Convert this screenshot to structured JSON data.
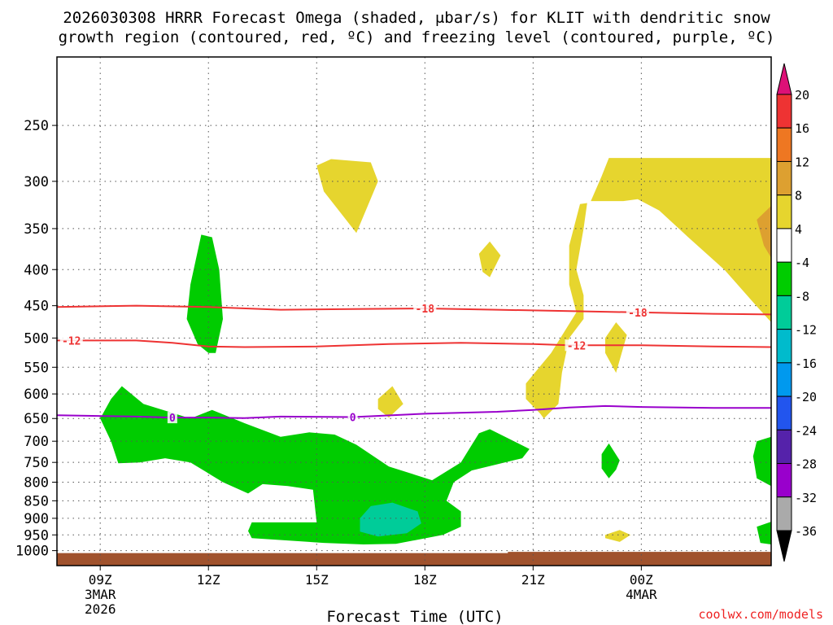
{
  "chart_data": {
    "type": "contour",
    "title_line1": "2026030308 HRRR Forecast Omega (shaded, μbar/s) for KLIT with dendritic snow",
    "title_line2": "growth region (contoured, red, ºC) and freezing level (contoured, purple, ºC)",
    "xlabel": "Forecast Time (UTC)",
    "credit": "coolwx.com/models",
    "x_range_hours": [
      7.8,
      27.6
    ],
    "y_axis": {
      "type": "log",
      "unit": "hPa",
      "range": [
        200,
        1050
      ],
      "reversed": true,
      "ticks": [
        250,
        300,
        350,
        400,
        450,
        500,
        550,
        600,
        650,
        700,
        750,
        800,
        850,
        900,
        950,
        1000
      ]
    },
    "x_ticks": [
      {
        "hour": 9,
        "label": "09Z",
        "sub1": "3MAR",
        "sub2": "2026"
      },
      {
        "hour": 12,
        "label": "12Z",
        "sub1": "",
        "sub2": ""
      },
      {
        "hour": 15,
        "label": "15Z",
        "sub1": "",
        "sub2": ""
      },
      {
        "hour": 18,
        "label": "18Z",
        "sub1": "",
        "sub2": ""
      },
      {
        "hour": 21,
        "label": "21Z",
        "sub1": "",
        "sub2": ""
      },
      {
        "hour": 24,
        "label": "00Z",
        "sub1": "4MAR",
        "sub2": ""
      }
    ],
    "contours": [
      {
        "name": "dgz-upper",
        "value": -18,
        "label": "-18",
        "color": "#ee3333",
        "points": [
          [
            7.8,
            452
          ],
          [
            10,
            450
          ],
          [
            12,
            452
          ],
          [
            14,
            456
          ],
          [
            16,
            455
          ],
          [
            18,
            454
          ],
          [
            20,
            456
          ],
          [
            22,
            458
          ],
          [
            24,
            460
          ],
          [
            26,
            462
          ],
          [
            27.6,
            463
          ]
        ],
        "label_hours": [
          18,
          23.9
        ]
      },
      {
        "name": "dgz-lower",
        "value": -12,
        "label": "-12",
        "color": "#ee3333",
        "points": [
          [
            7.8,
            504
          ],
          [
            10,
            504
          ],
          [
            11,
            508
          ],
          [
            12,
            514
          ],
          [
            13,
            515
          ],
          [
            15,
            514
          ],
          [
            17,
            510
          ],
          [
            19,
            508
          ],
          [
            21,
            510
          ],
          [
            22,
            512
          ],
          [
            24,
            512
          ],
          [
            26,
            514
          ],
          [
            27.6,
            515
          ]
        ],
        "label_hours": [
          8.2,
          22.2
        ]
      },
      {
        "name": "freezing-level",
        "value": 0,
        "label": "0",
        "color": "#9900cc",
        "points": [
          [
            7.8,
            643
          ],
          [
            10,
            646
          ],
          [
            11,
            648
          ],
          [
            12,
            648
          ],
          [
            13,
            649
          ],
          [
            14,
            646
          ],
          [
            16,
            647
          ],
          [
            18,
            640
          ],
          [
            20,
            636
          ],
          [
            21,
            632
          ],
          [
            22,
            627
          ],
          [
            23,
            624
          ],
          [
            24,
            626
          ],
          [
            26,
            628
          ],
          [
            27.6,
            628
          ]
        ],
        "label_hours": [
          11.0,
          16.0
        ]
      }
    ],
    "shaded_regions": [
      {
        "name": "ascent-green-1",
        "bin": "-8 to -4",
        "color": "#00cc00",
        "points": [
          [
            11.5,
            420
          ],
          [
            11.8,
            357
          ],
          [
            12.1,
            360
          ],
          [
            12.3,
            400
          ],
          [
            12.4,
            470
          ],
          [
            12.2,
            525
          ],
          [
            12,
            525
          ],
          [
            11.7,
            510
          ],
          [
            11.4,
            470
          ]
        ]
      },
      {
        "name": "ascent-green-main",
        "bin": "-8 to -4",
        "color": "#00cc00",
        "points": [
          [
            9.0,
            650
          ],
          [
            9.3,
            610
          ],
          [
            9.6,
            585
          ],
          [
            10.2,
            620
          ],
          [
            11.5,
            650
          ],
          [
            12.1,
            632
          ],
          [
            13,
            660
          ],
          [
            14,
            690
          ],
          [
            14.8,
            680
          ],
          [
            15.5,
            685
          ],
          [
            16.1,
            708
          ],
          [
            17,
            760
          ],
          [
            18.2,
            795
          ],
          [
            19,
            750
          ],
          [
            19.5,
            682
          ],
          [
            19.8,
            673
          ],
          [
            20.9,
            718
          ],
          [
            20.7,
            740
          ],
          [
            19.3,
            770
          ],
          [
            18.8,
            800
          ],
          [
            18.6,
            850
          ],
          [
            19.0,
            880
          ],
          [
            19.0,
            925
          ],
          [
            18.5,
            950
          ],
          [
            17.2,
            978
          ],
          [
            16.3,
            980
          ],
          [
            15.2,
            975
          ],
          [
            13.2,
            960
          ],
          [
            13.1,
            938
          ],
          [
            13.2,
            912
          ],
          [
            15.0,
            912
          ],
          [
            14.9,
            820
          ],
          [
            14.2,
            810
          ],
          [
            13.5,
            805
          ],
          [
            13.1,
            830
          ],
          [
            12.4,
            800
          ],
          [
            11.5,
            750
          ],
          [
            10.8,
            740
          ],
          [
            10.1,
            750
          ],
          [
            9.5,
            752
          ],
          [
            9.3,
            700
          ]
        ]
      },
      {
        "name": "ascent-green-right-1",
        "bin": "-8 to -4",
        "color": "#00cc00",
        "points": [
          [
            22.9,
            730
          ],
          [
            23.1,
            705
          ],
          [
            23.4,
            745
          ],
          [
            23.3,
            768
          ],
          [
            23.1,
            790
          ],
          [
            22.9,
            765
          ]
        ]
      },
      {
        "name": "ascent-green-right-2",
        "bin": "-8 to -4",
        "color": "#00cc00",
        "points": [
          [
            27.6,
            690
          ],
          [
            27.2,
            700
          ],
          [
            27.1,
            735
          ],
          [
            27.2,
            790
          ],
          [
            27.6,
            810
          ]
        ]
      },
      {
        "name": "ascent-green-right-3",
        "bin": "-8 to -4",
        "color": "#00cc00",
        "points": [
          [
            27.6,
            910
          ],
          [
            27.2,
            925
          ],
          [
            27.3,
            975
          ],
          [
            27.6,
            980
          ]
        ]
      },
      {
        "name": "ascent-teal",
        "bin": "-12 to -8",
        "color": "#00cc99",
        "points": [
          [
            16.2,
            900
          ],
          [
            16.5,
            865
          ],
          [
            17.1,
            855
          ],
          [
            17.8,
            880
          ],
          [
            17.9,
            915
          ],
          [
            17.5,
            945
          ],
          [
            16.7,
            955
          ],
          [
            16.2,
            940
          ]
        ]
      },
      {
        "name": "descent-yellow-1",
        "bin": "4 to 8",
        "color": "#e6d52e",
        "points": [
          [
            15.0,
            285
          ],
          [
            15.4,
            279
          ],
          [
            16.5,
            282
          ],
          [
            16.7,
            300
          ],
          [
            16.1,
            355
          ],
          [
            15.2,
            310
          ]
        ]
      },
      {
        "name": "descent-yellow-2",
        "bin": "4 to 8",
        "color": "#e6d52e",
        "points": [
          [
            19.5,
            380
          ],
          [
            19.8,
            365
          ],
          [
            20.1,
            382
          ],
          [
            19.8,
            410
          ],
          [
            19.6,
            403
          ]
        ]
      },
      {
        "name": "descent-yellow-3",
        "bin": "4 to 8",
        "color": "#e6d52e",
        "points": [
          [
            16.7,
            610
          ],
          [
            17.1,
            585
          ],
          [
            17.4,
            620
          ],
          [
            17.0,
            648
          ],
          [
            16.7,
            630
          ]
        ]
      },
      {
        "name": "descent-yellow-4",
        "bin": "4 to 8",
        "color": "#e6d52e",
        "points": [
          [
            23.0,
            500
          ],
          [
            23.3,
            475
          ],
          [
            23.6,
            495
          ],
          [
            23.3,
            560
          ],
          [
            23.0,
            525
          ]
        ]
      },
      {
        "name": "descent-yellow-5",
        "bin": "4 to 8",
        "color": "#e6d52e",
        "points": [
          [
            23.0,
            950
          ],
          [
            23.4,
            935
          ],
          [
            23.7,
            950
          ],
          [
            23.4,
            972
          ],
          [
            23.0,
            960
          ]
        ]
      },
      {
        "name": "descent-yellow-main",
        "bin": "4 to 8",
        "color": "#e6d52e",
        "points": [
          [
            21.2,
            640
          ],
          [
            20.8,
            610
          ],
          [
            20.8,
            580
          ],
          [
            21.5,
            525
          ],
          [
            22.2,
            460
          ],
          [
            22.0,
            420
          ],
          [
            22.0,
            370
          ],
          [
            22.3,
            323
          ],
          [
            22.5,
            322
          ],
          [
            22.4,
            350
          ],
          [
            22.2,
            400
          ],
          [
            22.4,
            435
          ],
          [
            22.4,
            470
          ],
          [
            22.0,
            500
          ],
          [
            21.8,
            560
          ],
          [
            21.7,
            620
          ],
          [
            21.3,
            650
          ]
        ]
      },
      {
        "name": "descent-yellow-top",
        "bin": "4 to 8",
        "color": "#e6d52e",
        "points": [
          [
            22.6,
            320
          ],
          [
            22.9,
            295
          ],
          [
            23.1,
            278
          ],
          [
            27.6,
            278
          ],
          [
            27.6,
            475
          ],
          [
            27.1,
            445
          ],
          [
            26.3,
            400
          ],
          [
            25.3,
            360
          ],
          [
            24.5,
            330
          ],
          [
            23.9,
            318
          ],
          [
            23.5,
            320
          ]
        ]
      },
      {
        "name": "descent-orange",
        "bin": "8 to 12",
        "color": "#dda030",
        "points": [
          [
            27.6,
            325
          ],
          [
            27.2,
            340
          ],
          [
            27.4,
            370
          ],
          [
            27.6,
            385
          ]
        ]
      }
    ],
    "ground": {
      "color": "#a0522d",
      "top_hpa": 1008,
      "right_top_hpa": 1004,
      "step_hour": 20.3
    },
    "colorbar": {
      "levels": [
        "20",
        "16",
        "12",
        "8",
        "4",
        "-4",
        "-8",
        "-12",
        "-16",
        "-20",
        "-24",
        "-28",
        "-32",
        "-36"
      ],
      "bins": [
        {
          "range": ">20",
          "color": "#dd1177"
        },
        {
          "range": "16 to 20",
          "color": "#ee3333"
        },
        {
          "range": "12 to 16",
          "color": "#ee7722"
        },
        {
          "range": "8 to 12",
          "color": "#dda030"
        },
        {
          "range": "4 to 8",
          "color": "#e6d52e"
        },
        {
          "range": "-4 to 4",
          "color": "#ffffff"
        },
        {
          "range": "-8 to -4",
          "color": "#00cc00"
        },
        {
          "range": "-12 to -8",
          "color": "#00cc99"
        },
        {
          "range": "-16 to -12",
          "color": "#00bbcc"
        },
        {
          "range": "-20 to -16",
          "color": "#0099ee"
        },
        {
          "range": "-24 to -20",
          "color": "#2255ee"
        },
        {
          "range": "-28 to -24",
          "color": "#5522aa"
        },
        {
          "range": "-32 to -28",
          "color": "#9900cc"
        },
        {
          "range": "-36 to -32",
          "color": "#aaaaaa"
        },
        {
          "range": "<-36",
          "color": "#000000"
        }
      ]
    }
  }
}
